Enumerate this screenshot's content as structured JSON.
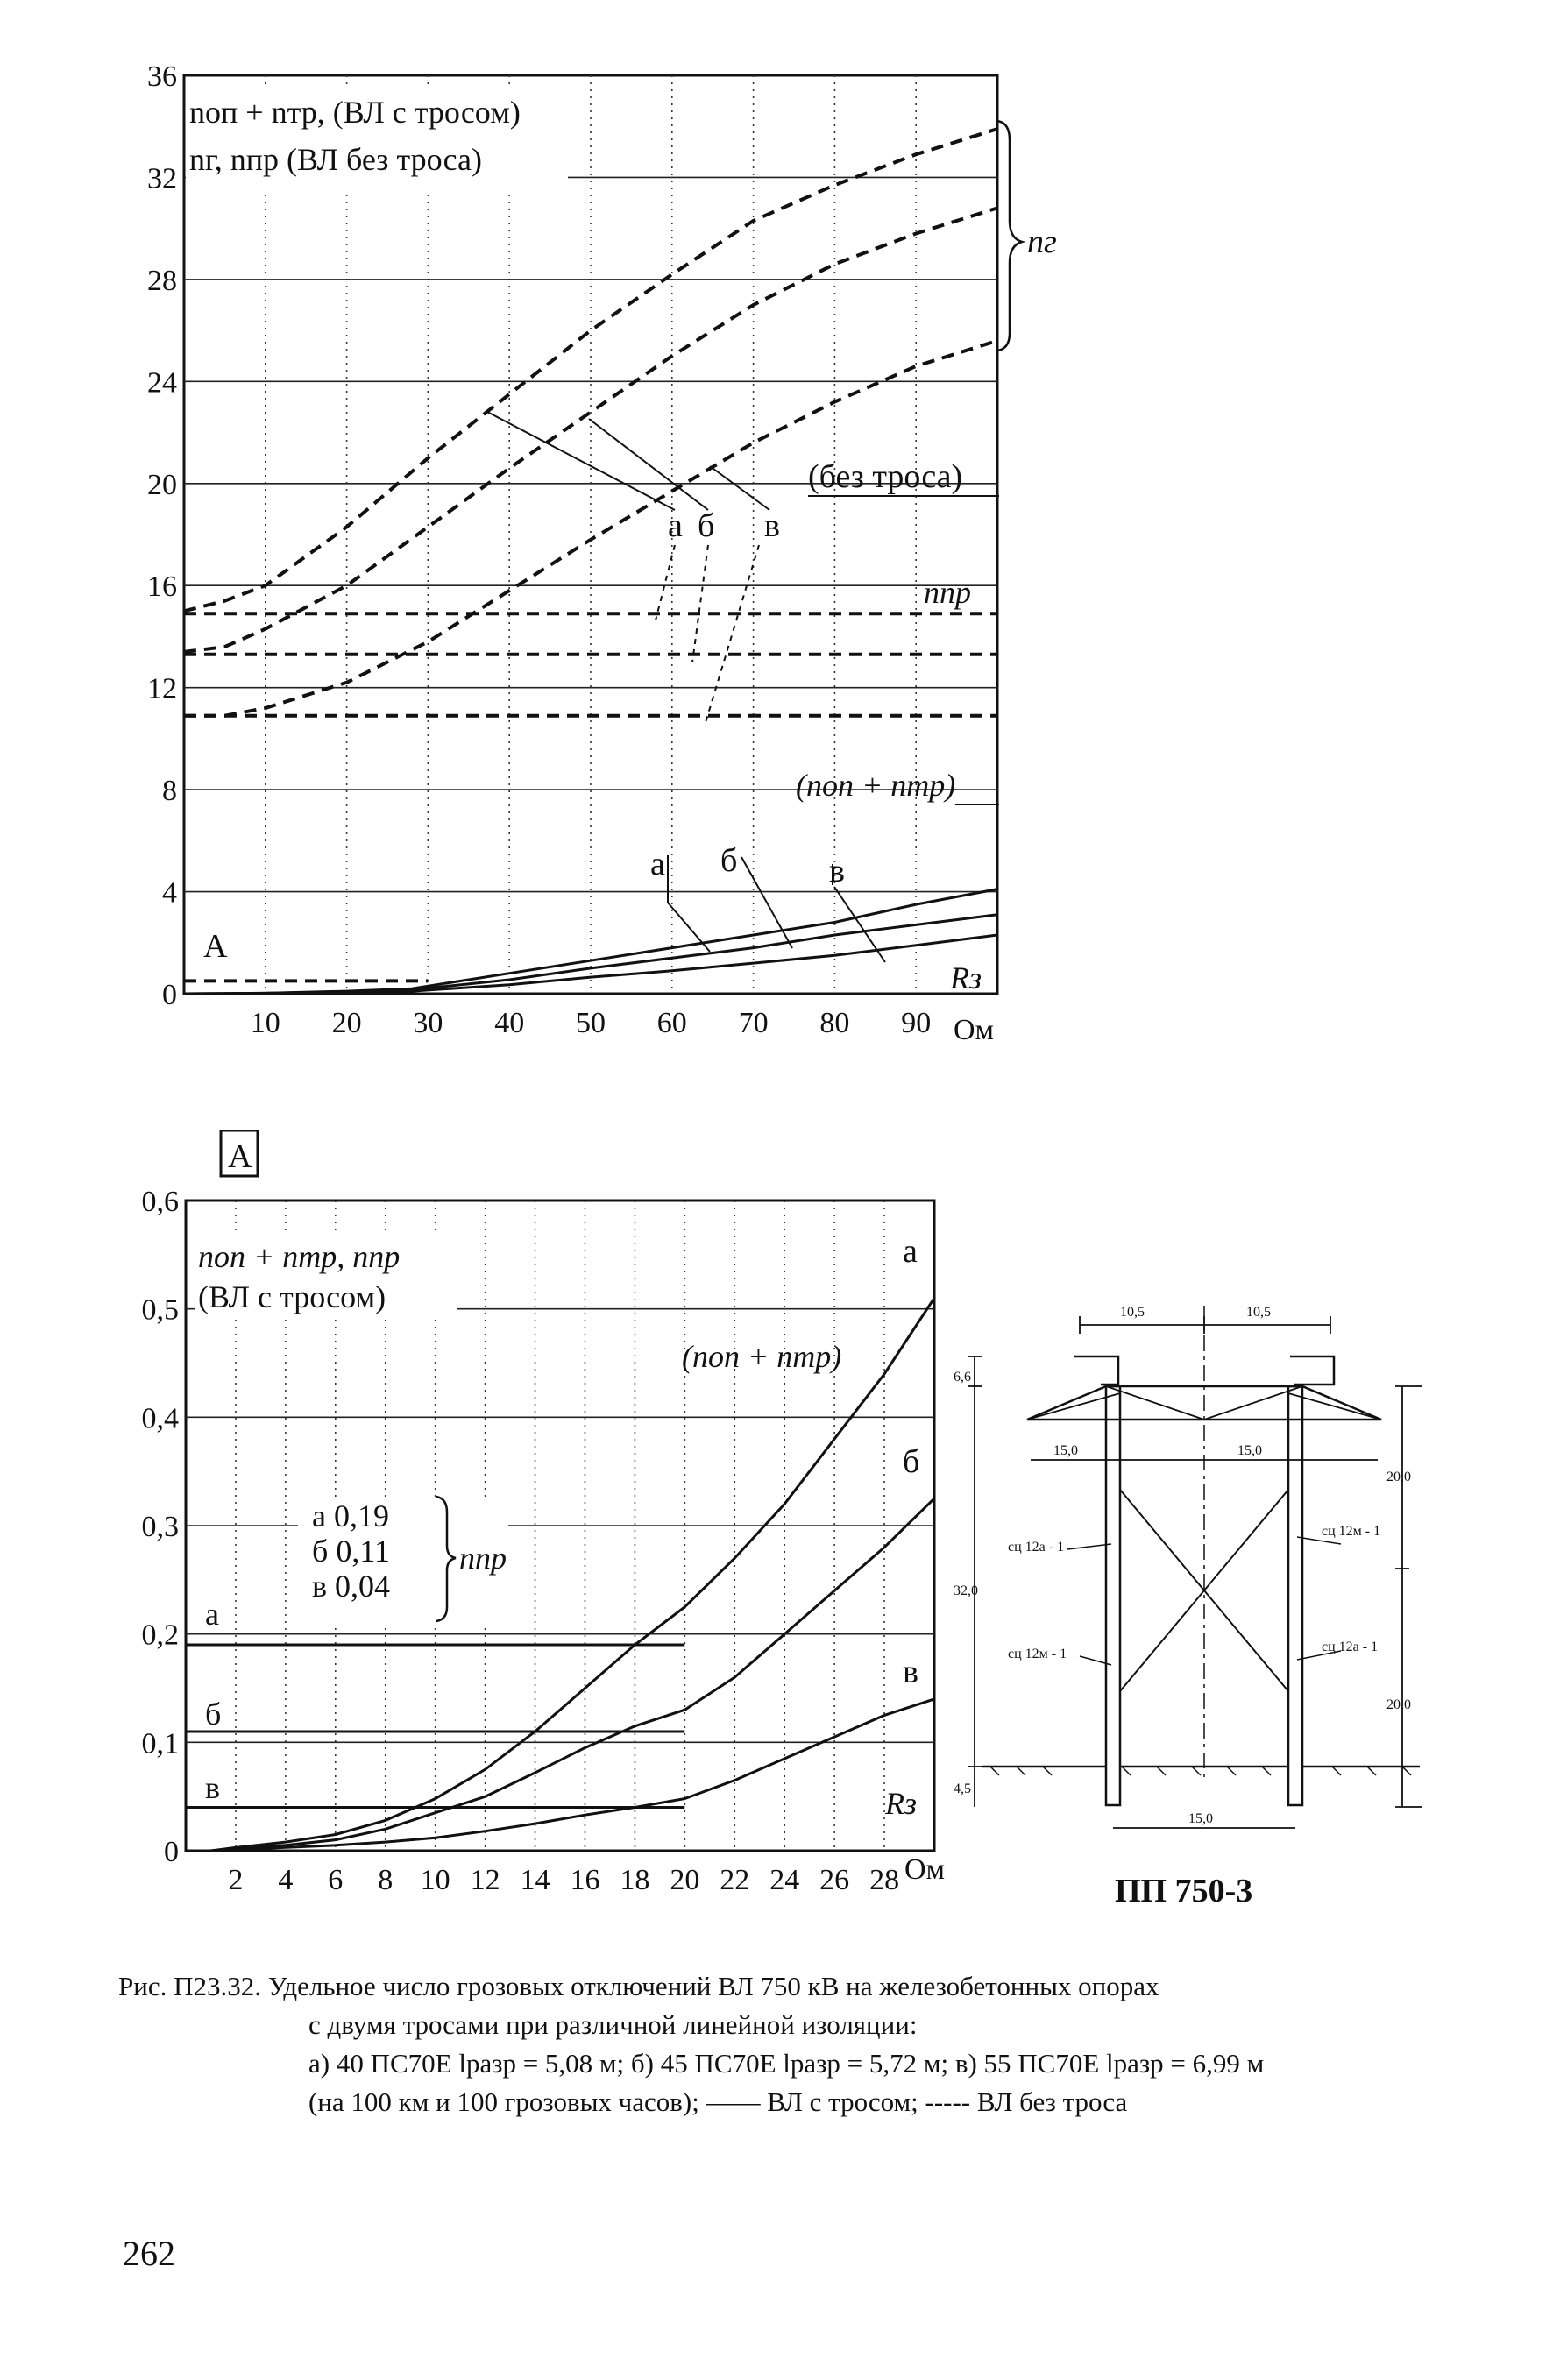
{
  "chart_data": [
    {
      "type": "line",
      "chart_letter": "",
      "legend_lines": [
        "nоп + nтр, (ВЛ с тросом)",
        "nг, nпр (ВЛ без троса)"
      ],
      "x_ticks": [
        10,
        20,
        30,
        40,
        50,
        60,
        70,
        80,
        90
      ],
      "x_unit": "Ом",
      "y_ticks": [
        0,
        4,
        8,
        12,
        16,
        20,
        24,
        28,
        32,
        36
      ],
      "xlim": [
        0,
        100
      ],
      "ylim": [
        0,
        36
      ],
      "grid": true,
      "labels": {
        "ng": "nг",
        "bez_trosa": "(без троса)",
        "npr": "nпр",
        "nop_ntr": "(nоп + nтр)",
        "a": "а",
        "b": "б",
        "v": "в",
        "inset_marker": "А",
        "rz": "Rз"
      },
      "series": [
        {
          "group": "nг (ВЛ без троса)",
          "curve": "а",
          "style": "dashed",
          "x": [
            0,
            5,
            10,
            20,
            30,
            40,
            50,
            60,
            70,
            80,
            90,
            100
          ],
          "y": [
            15.0,
            15.4,
            16.0,
            18.3,
            21.0,
            23.5,
            26.0,
            28.2,
            30.3,
            31.7,
            32.9,
            33.9
          ]
        },
        {
          "group": "nг (ВЛ без троса)",
          "curve": "б",
          "style": "dashed",
          "x": [
            0,
            5,
            10,
            20,
            30,
            40,
            50,
            60,
            70,
            80,
            90,
            100
          ],
          "y": [
            13.4,
            13.6,
            14.3,
            16.0,
            18.3,
            20.6,
            22.8,
            25.0,
            27.0,
            28.6,
            29.8,
            30.8
          ]
        },
        {
          "group": "nг (ВЛ без троса)",
          "curve": "в",
          "style": "dashed",
          "x": [
            0,
            5,
            10,
            20,
            30,
            40,
            50,
            60,
            70,
            80,
            90,
            100
          ],
          "y": [
            10.9,
            10.9,
            11.2,
            12.2,
            13.8,
            15.8,
            17.8,
            19.7,
            21.6,
            23.2,
            24.6,
            25.6
          ]
        },
        {
          "group": "nпр (ВЛ без троса)",
          "curve": "а",
          "style": "dashed",
          "x": [
            0,
            100
          ],
          "y": [
            14.9,
            14.9
          ]
        },
        {
          "group": "nпр (ВЛ без троса)",
          "curve": "б",
          "style": "dashed",
          "x": [
            0,
            100
          ],
          "y": [
            13.3,
            13.3
          ]
        },
        {
          "group": "nпр (ВЛ без троса)",
          "curve": "в",
          "style": "dashed",
          "x": [
            0,
            100
          ],
          "y": [
            10.9,
            10.9
          ]
        },
        {
          "group": "nоп + nтр (ВЛ с тросом)",
          "curve": "а",
          "style": "solid",
          "x": [
            0,
            10,
            20,
            28,
            40,
            50,
            60,
            70,
            80,
            90,
            100
          ],
          "y": [
            0,
            0.02,
            0.1,
            0.2,
            0.8,
            1.3,
            1.8,
            2.3,
            2.8,
            3.5,
            4.1
          ]
        },
        {
          "group": "nоп + nтр (ВЛ с тросом)",
          "curve": "б",
          "style": "solid",
          "x": [
            0,
            10,
            20,
            28,
            40,
            50,
            60,
            70,
            80,
            90,
            100
          ],
          "y": [
            0,
            0.02,
            0.08,
            0.15,
            0.55,
            1.0,
            1.4,
            1.8,
            2.3,
            2.7,
            3.1
          ]
        },
        {
          "group": "nоп + nтр (ВЛ с тросом)",
          "curve": "в",
          "style": "solid",
          "x": [
            0,
            10,
            20,
            28,
            40,
            50,
            60,
            70,
            80,
            90,
            100
          ],
          "y": [
            0,
            0.01,
            0.05,
            0.1,
            0.35,
            0.65,
            0.9,
            1.2,
            1.5,
            1.9,
            2.3
          ]
        },
        {
          "group": "nоп + nтр (ВЛ с тросом)",
          "curve": "",
          "style": "dashed",
          "x": [
            0,
            30
          ],
          "y": [
            0.5,
            0.5
          ]
        }
      ]
    },
    {
      "type": "line",
      "chart_letter": "А",
      "legend_lines": [
        "nоп + nтр, nпр",
        "(ВЛ с тросом)"
      ],
      "x_ticks": [
        2,
        4,
        6,
        8,
        10,
        12,
        14,
        16,
        18,
        20,
        22,
        24,
        26,
        28
      ],
      "x_unit": "Ом",
      "y_ticks": [
        "0",
        "0,1",
        "0,2",
        "0,3",
        "0,4",
        "0,5",
        "0,6"
      ],
      "xlim": [
        0,
        30
      ],
      "ylim": [
        0,
        0.6
      ],
      "grid": true,
      "labels": {
        "nop_ntr": "(nоп + nтр)",
        "npr": "nпр",
        "a": "а",
        "b": "б",
        "v": "в",
        "rz": "Rз",
        "bracket_a": "а 0,19",
        "bracket_b": "б 0,11",
        "bracket_v": "в 0,04"
      },
      "npr_values": {
        "а": 0.19,
        "б": 0.11,
        "в": 0.04
      },
      "series": [
        {
          "group": "nпр",
          "curve": "а",
          "style": "solid",
          "x": [
            0,
            20
          ],
          "y": [
            0.19,
            0.19
          ]
        },
        {
          "group": "nпр",
          "curve": "б",
          "style": "solid",
          "x": [
            0,
            20
          ],
          "y": [
            0.11,
            0.11
          ]
        },
        {
          "group": "nпр",
          "curve": "в",
          "style": "solid",
          "x": [
            0,
            20
          ],
          "y": [
            0.04,
            0.04
          ]
        },
        {
          "group": "nоп + nтр",
          "curve": "а",
          "style": "solid",
          "x": [
            1,
            2,
            4,
            6,
            8,
            10,
            12,
            14,
            16,
            18,
            20,
            22,
            24,
            26,
            28,
            30
          ],
          "y": [
            0,
            0.003,
            0.008,
            0.015,
            0.028,
            0.048,
            0.075,
            0.11,
            0.15,
            0.19,
            0.225,
            0.27,
            0.32,
            0.38,
            0.44,
            0.51
          ]
        },
        {
          "group": "nоп + nтр",
          "curve": "б",
          "style": "solid",
          "x": [
            1,
            2,
            4,
            6,
            8,
            10,
            12,
            14,
            16,
            18,
            20,
            22,
            24,
            26,
            28,
            30
          ],
          "y": [
            0,
            0.002,
            0.005,
            0.01,
            0.02,
            0.035,
            0.05,
            0.072,
            0.095,
            0.115,
            0.13,
            0.16,
            0.2,
            0.24,
            0.28,
            0.325
          ]
        },
        {
          "group": "nоп + nтр",
          "curve": "в",
          "style": "solid",
          "x": [
            1,
            2,
            4,
            6,
            8,
            10,
            12,
            14,
            16,
            18,
            20,
            22,
            24,
            26,
            28,
            30
          ],
          "y": [
            0,
            0.001,
            0.003,
            0.005,
            0.008,
            0.012,
            0.018,
            0.025,
            0.033,
            0.04,
            0.048,
            0.065,
            0.085,
            0.105,
            0.125,
            0.14
          ]
        }
      ]
    }
  ],
  "tower": {
    "caption": "ПП 750-3",
    "dims": {
      "top_left": "10,5",
      "top_right": "10,5",
      "small_height": "6,6",
      "arm_left": "15,0",
      "arm_right": "15,0",
      "total_height": "20,0",
      "mid_height": "32,0",
      "lower_height": "20,0",
      "bottom_height": "4,5",
      "base_width": "15,0"
    },
    "labels": {
      "left_upper": "сц 12а - 1",
      "left_lower": "сц 12м - 1",
      "right_upper": "сц 12м - 1",
      "right_lower": "сц 12а - 1"
    }
  },
  "caption": {
    "line1": "Рис. П23.32. Удельное число грозовых отключений ВЛ 750 кВ на железобетонных опорах",
    "line2": "с двумя тросами при различной линейной изоляции:",
    "line3": "а) 40 ПС70Е lразр = 5,08 м; б) 45 ПС70Е lразр = 5,72 м; в) 55 ПС70Е lразр = 6,99 м",
    "line4": "(на 100 км и 100 грозовых часов); —— ВЛ с тросом; ----- ВЛ без троса"
  },
  "page_number": "262"
}
